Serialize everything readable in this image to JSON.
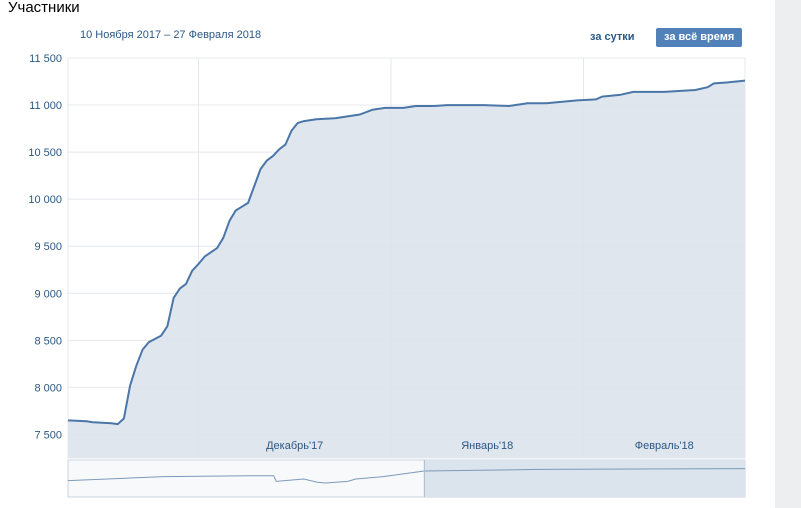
{
  "header": {
    "title": "Участники",
    "date_range": "10 Ноября 2017 – 27 Февраля 2018",
    "btn_day": "за сутки",
    "btn_all": "за всё время"
  },
  "colors": {
    "line": "#4a76a8",
    "fill": "#dbe3ec",
    "grid": "#e4e8ed",
    "label": "#2a5885",
    "button_active_bg": "#5181b8"
  },
  "chart_data": {
    "type": "area",
    "title": "Участники",
    "ylim": [
      7250,
      11500
    ],
    "yticks": [
      7500,
      8000,
      8500,
      9000,
      9500,
      10000,
      10500,
      11000,
      11500
    ],
    "ytick_labels": [
      "7 500",
      "8 000",
      "8 500",
      "9 000",
      "9 500",
      "10 000",
      "10 500",
      "11 000",
      "11 500"
    ],
    "xlim": [
      "2017-11-10",
      "2018-02-27"
    ],
    "month_ticks": [
      {
        "label": "Декабрь'17",
        "date": "2017-12-01"
      },
      {
        "label": "Январь'18",
        "date": "2018-01-01"
      },
      {
        "label": "Февраль'18",
        "date": "2018-02-01"
      }
    ],
    "grid": true,
    "series": [
      {
        "points": [
          [
            "2017-11-10",
            7650
          ],
          [
            "2017-11-13",
            7640
          ],
          [
            "2017-11-14",
            7630
          ],
          [
            "2017-11-17",
            7620
          ],
          [
            "2017-11-18",
            7610
          ],
          [
            "2017-11-19",
            7670
          ],
          [
            "2017-11-20",
            8020
          ],
          [
            "2017-11-21",
            8230
          ],
          [
            "2017-11-22",
            8400
          ],
          [
            "2017-11-23",
            8480
          ],
          [
            "2017-11-25",
            8550
          ],
          [
            "2017-11-26",
            8650
          ],
          [
            "2017-11-27",
            8950
          ],
          [
            "2017-11-28",
            9050
          ],
          [
            "2017-11-29",
            9100
          ],
          [
            "2017-11-30",
            9240
          ],
          [
            "2017-12-01",
            9310
          ],
          [
            "2017-12-02",
            9390
          ],
          [
            "2017-12-04",
            9480
          ],
          [
            "2017-12-05",
            9590
          ],
          [
            "2017-12-06",
            9770
          ],
          [
            "2017-12-07",
            9880
          ],
          [
            "2017-12-08",
            9920
          ],
          [
            "2017-12-09",
            9960
          ],
          [
            "2017-12-10",
            10140
          ],
          [
            "2017-12-11",
            10320
          ],
          [
            "2017-12-12",
            10410
          ],
          [
            "2017-12-13",
            10460
          ],
          [
            "2017-12-14",
            10530
          ],
          [
            "2017-12-15",
            10580
          ],
          [
            "2017-12-16",
            10730
          ],
          [
            "2017-12-17",
            10810
          ],
          [
            "2017-12-18",
            10830
          ],
          [
            "2017-12-20",
            10850
          ],
          [
            "2017-12-23",
            10860
          ],
          [
            "2017-12-27",
            10900
          ],
          [
            "2017-12-29",
            10950
          ],
          [
            "2017-12-31",
            10970
          ],
          [
            "2018-01-03",
            10970
          ],
          [
            "2018-01-05",
            10990
          ],
          [
            "2018-01-08",
            10990
          ],
          [
            "2018-01-10",
            11000
          ],
          [
            "2018-01-16",
            11000
          ],
          [
            "2018-01-20",
            10990
          ],
          [
            "2018-01-23",
            11020
          ],
          [
            "2018-01-26",
            11020
          ],
          [
            "2018-01-31",
            11050
          ],
          [
            "2018-02-03",
            11060
          ],
          [
            "2018-02-04",
            11090
          ],
          [
            "2018-02-07",
            11110
          ],
          [
            "2018-02-09",
            11140
          ],
          [
            "2018-02-14",
            11140
          ],
          [
            "2018-02-19",
            11160
          ],
          [
            "2018-02-21",
            11190
          ],
          [
            "2018-02-22",
            11230
          ],
          [
            "2018-02-24",
            11240
          ],
          [
            "2018-02-27",
            11260
          ]
        ]
      }
    ],
    "navigator": {
      "points": [
        [
          "2017-11-10",
          0.88
        ],
        [
          "2017-12-01",
          0.91
        ],
        [
          "2017-12-15",
          0.93
        ],
        [
          "2018-01-15",
          0.94
        ],
        [
          "2018-01-24",
          0.94
        ],
        [
          "2018-01-25",
          0.87
        ],
        [
          "2018-02-04",
          0.9
        ],
        [
          "2018-02-09",
          0.86
        ],
        [
          "2018-02-12",
          0.85
        ],
        [
          "2018-02-20",
          0.87
        ],
        [
          "2018-02-23",
          0.9
        ],
        [
          "2018-03-05",
          0.93
        ],
        [
          "2018-03-20",
          1.0
        ],
        [
          "2018-05-01",
          1.02
        ],
        [
          "2018-07-15",
          1.03
        ]
      ],
      "xlim": [
        "2017-11-10",
        "2018-07-15"
      ],
      "window_start": "2018-03-20"
    }
  }
}
